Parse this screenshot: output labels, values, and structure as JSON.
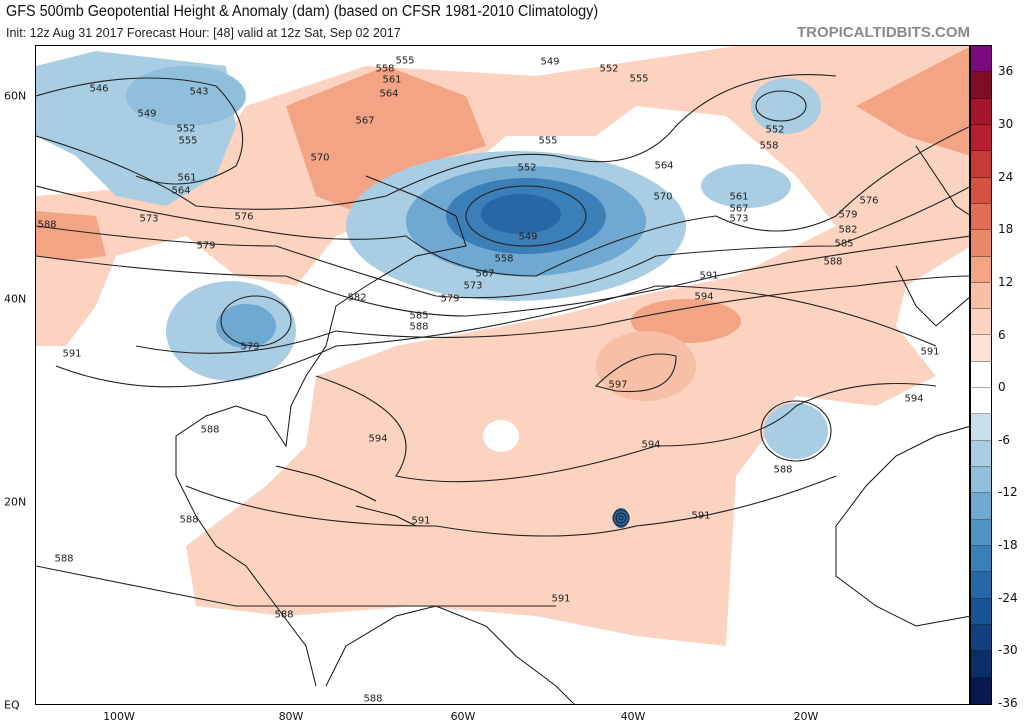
{
  "header": {
    "title": "GFS 500mb Geopotential Height & Anomaly (dam) (based on CFSR 1981-2010 Climatology)",
    "subtitle": "Init: 12z Aug 31 2017   Forecast Hour: [48]   valid at 12z Sat, Sep 02 2017",
    "brand": "TROPICALTIDBITS.COM"
  },
  "axes": {
    "lat": [
      "60N",
      "40N",
      "20N",
      "EQ"
    ],
    "lon": [
      "100W",
      "80W",
      "60W",
      "40W",
      "20W"
    ]
  },
  "colorbar": {
    "labels": [
      "36",
      "30",
      "24",
      "18",
      "12",
      "6",
      "0",
      "-6",
      "-12",
      "-18",
      "-24",
      "-30",
      "-36"
    ],
    "colors": [
      "#7b0a7f",
      "#7f0e24",
      "#a3162b",
      "#b81f2e",
      "#c73a36",
      "#d4523f",
      "#e06e55",
      "#e9896a",
      "#f3a485",
      "#f7bfa5",
      "#fbd3c0",
      "#fde2d5",
      "#ffffff",
      "#ffffff",
      "#c9dfec",
      "#a9cde2",
      "#8fbfdb",
      "#6fa8d0",
      "#4f93c4",
      "#3a7fb8",
      "#2767a8",
      "#1b5496",
      "#124080",
      "#0a2e66",
      "#08194f"
    ]
  },
  "contour_labels": [
    "546",
    "543",
    "549",
    "552",
    "555",
    "561",
    "564",
    "573",
    "588",
    "576",
    "579",
    "570",
    "567",
    "564",
    "561",
    "558",
    "555",
    "549",
    "552",
    "555",
    "555",
    "552",
    "549",
    "558",
    "564",
    "570",
    "561",
    "567",
    "573",
    "552",
    "558",
    "576",
    "579",
    "582",
    "585",
    "588",
    "591",
    "594",
    "567",
    "573",
    "579",
    "582",
    "585",
    "588",
    "579",
    "591",
    "597",
    "594",
    "594",
    "588",
    "591",
    "594",
    "588",
    "588",
    "591",
    "591",
    "588",
    "588",
    "591",
    "588"
  ]
}
